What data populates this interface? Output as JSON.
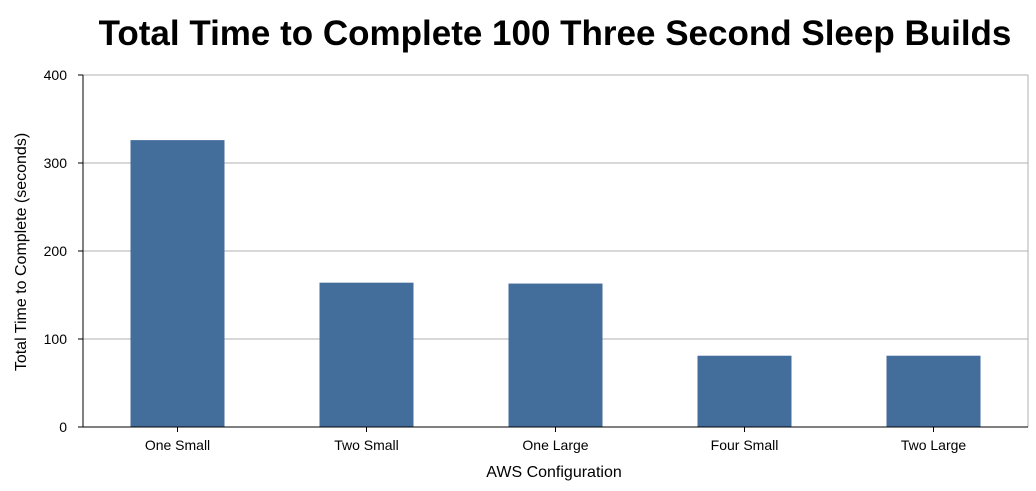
{
  "chart_data": {
    "type": "bar",
    "title": "Total Time to Complete 100 Three Second Sleep Builds",
    "xlabel": "AWS Configuration",
    "ylabel": "Total Time to Complete (seconds)",
    "categories": [
      "One Small",
      "Two Small",
      "One Large",
      "Four Small",
      "Two Large"
    ],
    "values": [
      326,
      164,
      163,
      81,
      81
    ],
    "ylim": [
      0,
      400
    ],
    "yticks": [
      0,
      100,
      200,
      300,
      400
    ],
    "grid": true,
    "bar_color": "#436e9b",
    "grid_color": "#b0b0b0"
  }
}
